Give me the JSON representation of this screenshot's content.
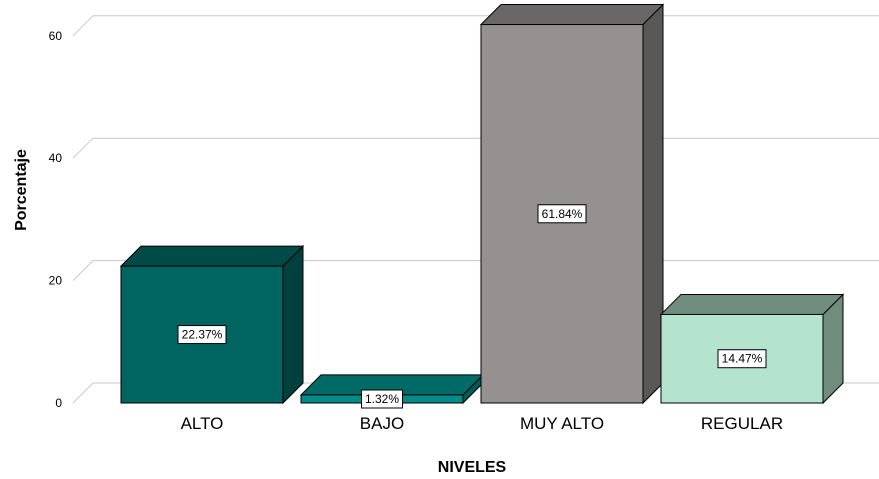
{
  "chart_data": {
    "type": "bar",
    "xlabel": "NIVELES",
    "ylabel": "Porcentaje",
    "categories": [
      "ALTO",
      "BAJO",
      "MUY ALTO",
      "REGULAR"
    ],
    "values": [
      22.37,
      1.32,
      61.84,
      14.47
    ],
    "data_labels": [
      "22.37%",
      "1.32%",
      "61.84%",
      "14.47%"
    ],
    "yticks": [
      0,
      20,
      40,
      60
    ],
    "ylim": [
      0,
      64
    ],
    "grid": true,
    "style_3d": true,
    "colors": [
      {
        "front": "#006560",
        "top": "#004a47",
        "side": "#00403d"
      },
      {
        "front": "#008d8a",
        "top": "#006a67",
        "side": "#005a58"
      },
      {
        "front": "#959190",
        "top": "#6a6766",
        "side": "#5a5857"
      },
      {
        "front": "#b4e4cd",
        "top": "#6f8c7e",
        "side": "#6f8c7e"
      }
    ]
  }
}
